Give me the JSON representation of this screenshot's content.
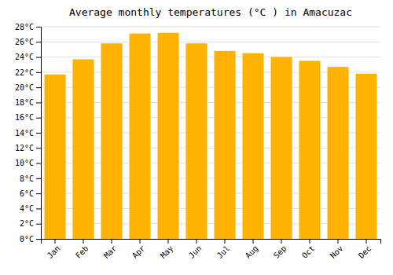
{
  "chart_data": {
    "type": "bar",
    "title": "Average monthly temperatures (°C ) in Amacuzac",
    "categories": [
      "Jan",
      "Feb",
      "Mar",
      "Apr",
      "May",
      "Jun",
      "Jul",
      "Aug",
      "Sep",
      "Oct",
      "Nov",
      "Dec"
    ],
    "values": [
      21.7,
      23.7,
      25.8,
      27.1,
      27.2,
      25.8,
      24.8,
      24.5,
      24.0,
      23.5,
      22.7,
      21.8
    ],
    "color": "#FFB300",
    "ylim": [
      0,
      28
    ],
    "yticks": [
      {
        "value": 0,
        "label": "0°C"
      },
      {
        "value": 2,
        "label": "2°C"
      },
      {
        "value": 4,
        "label": "4°C"
      },
      {
        "value": 6,
        "label": "6°C"
      },
      {
        "value": 8,
        "label": "8°C"
      },
      {
        "value": 10,
        "label": "10°C"
      },
      {
        "value": 12,
        "label": "12°C"
      },
      {
        "value": 14,
        "label": "14°C"
      },
      {
        "value": 16,
        "label": "16°C"
      },
      {
        "value": 18,
        "label": "18°C"
      },
      {
        "value": 20,
        "label": "20°C"
      },
      {
        "value": 22,
        "label": "22°C"
      },
      {
        "value": 24,
        "label": "24°C"
      },
      {
        "value": 26,
        "label": "26°C"
      },
      {
        "value": 28,
        "label": "28°C"
      }
    ],
    "grid": true
  }
}
